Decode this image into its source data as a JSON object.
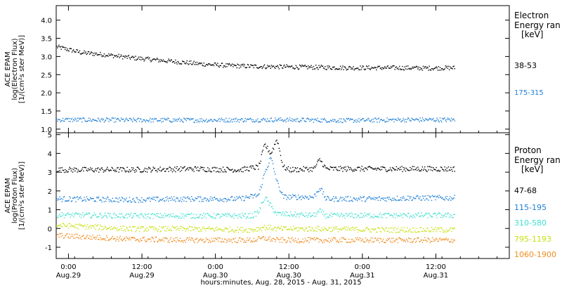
{
  "chart_data": {
    "type": "scatter",
    "xlabel": "hours:minutes, Aug. 28, 2015 - Aug. 31, 2015",
    "x_ticks": [
      {
        "time": "0:00",
        "day": "Aug.29",
        "hours": 0
      },
      {
        "time": "12:00",
        "day": "Aug.29",
        "hours": 12
      },
      {
        "time": "0:00",
        "day": "Aug.30",
        "hours": 24
      },
      {
        "time": "12:00",
        "day": "Aug.30",
        "hours": 36
      },
      {
        "time": "0:00",
        "day": "Aug.31",
        "hours": 48
      },
      {
        "time": "12:00",
        "day": "Aug.31",
        "hours": 60
      }
    ],
    "xlim_hours": [
      -2,
      72
    ],
    "data_end_hours": 63,
    "panels": [
      {
        "id": "electron",
        "ylabel_lines": [
          "ACE EPAM",
          "log(Electron Flux)",
          "[1/(cm²s ster MeV)]"
        ],
        "ylim": [
          0.9,
          4.4
        ],
        "yticks": [
          "1.0",
          "1.5",
          "2.0",
          "2.5",
          "3.0",
          "3.5",
          "4.0"
        ],
        "ytick_values": [
          1.0,
          1.5,
          2.0,
          2.5,
          3.0,
          3.5,
          4.0
        ],
        "legend_title": "Electron",
        "legend_subtitle": "Energy ran",
        "legend_unit": "[keV]",
        "series": [
          {
            "name": "38-53",
            "color": "#000000",
            "points": [
              [
                -2,
                3.28
              ],
              [
                2,
                3.12
              ],
              [
                6,
                3.06
              ],
              [
                10,
                2.98
              ],
              [
                14,
                2.92
              ],
              [
                18,
                2.86
              ],
              [
                22,
                2.8
              ],
              [
                26,
                2.76
              ],
              [
                30,
                2.74
              ],
              [
                34,
                2.73
              ],
              [
                38,
                2.72
              ],
              [
                42,
                2.71
              ],
              [
                46,
                2.7
              ],
              [
                50,
                2.7
              ],
              [
                54,
                2.7
              ],
              [
                58,
                2.69
              ],
              [
                63,
                2.7
              ]
            ]
          },
          {
            "name": "175-315",
            "color": "#1f7fd6",
            "points": [
              [
                -2,
                1.27
              ],
              [
                10,
                1.26
              ],
              [
                22,
                1.26
              ],
              [
                34,
                1.27
              ],
              [
                46,
                1.25
              ],
              [
                55,
                1.27
              ],
              [
                63,
                1.27
              ]
            ]
          }
        ]
      },
      {
        "id": "proton",
        "ylabel_lines": [
          "ACE EPAM",
          "log(Proton Flux)",
          "[1/(cm²s ster MeV)]"
        ],
        "ylim": [
          -1.6,
          5.1
        ],
        "yticks": [
          "-1",
          "0",
          "1",
          "2",
          "3",
          "4",
          "5"
        ],
        "ytick_values": [
          -1,
          0,
          1,
          2,
          3,
          4,
          5
        ],
        "legend_title": "Proton",
        "legend_subtitle": "Energy ran",
        "legend_unit": "[keV]",
        "series": [
          {
            "name": "47-68",
            "color": "#000000",
            "points": [
              [
                -2,
                3.15
              ],
              [
                10,
                3.15
              ],
              [
                20,
                3.2
              ],
              [
                28,
                3.15
              ],
              [
                31,
                3.3
              ],
              [
                32,
                4.5
              ],
              [
                33,
                4.0
              ],
              [
                34,
                4.8
              ],
              [
                35,
                3.3
              ],
              [
                36,
                3.15
              ],
              [
                40,
                3.2
              ],
              [
                41,
                3.7
              ],
              [
                42,
                3.2
              ],
              [
                50,
                3.2
              ],
              [
                56,
                3.2
              ],
              [
                63,
                3.2
              ]
            ]
          },
          {
            "name": "115-195",
            "color": "#1f7fd6",
            "points": [
              [
                -2,
                1.6
              ],
              [
                10,
                1.55
              ],
              [
                20,
                1.6
              ],
              [
                28,
                1.6
              ],
              [
                31,
                1.8
              ],
              [
                32,
                3.0
              ],
              [
                33,
                3.8
              ],
              [
                34,
                2.5
              ],
              [
                35,
                1.7
              ],
              [
                40,
                1.7
              ],
              [
                41,
                2.2
              ],
              [
                42,
                1.6
              ],
              [
                50,
                1.6
              ],
              [
                56,
                1.65
              ],
              [
                63,
                1.65
              ]
            ]
          },
          {
            "name": "310-580",
            "color": "#3fe0d0",
            "points": [
              [
                -2,
                0.75
              ],
              [
                10,
                0.7
              ],
              [
                20,
                0.7
              ],
              [
                30,
                0.7
              ],
              [
                31,
                0.9
              ],
              [
                32,
                1.7
              ],
              [
                33,
                1.2
              ],
              [
                34,
                0.8
              ],
              [
                40,
                0.72
              ],
              [
                41,
                0.95
              ],
              [
                42,
                0.7
              ],
              [
                50,
                0.72
              ],
              [
                63,
                0.72
              ]
            ]
          },
          {
            "name": "795-1193",
            "color": "#c8e010",
            "points": [
              [
                -2,
                0.2
              ],
              [
                10,
                0.0
              ],
              [
                20,
                0.0
              ],
              [
                30,
                -0.05
              ],
              [
                32,
                0.1
              ],
              [
                34,
                0.0
              ],
              [
                42,
                0.0
              ],
              [
                50,
                -0.05
              ],
              [
                63,
                -0.05
              ]
            ]
          },
          {
            "name": "1060-1900",
            "color": "#f08c1e",
            "points": [
              [
                -2,
                -0.35
              ],
              [
                10,
                -0.55
              ],
              [
                20,
                -0.6
              ],
              [
                30,
                -0.6
              ],
              [
                32,
                -0.5
              ],
              [
                34,
                -0.6
              ],
              [
                42,
                -0.6
              ],
              [
                50,
                -0.6
              ],
              [
                63,
                -0.6
              ]
            ]
          }
        ]
      }
    ]
  }
}
